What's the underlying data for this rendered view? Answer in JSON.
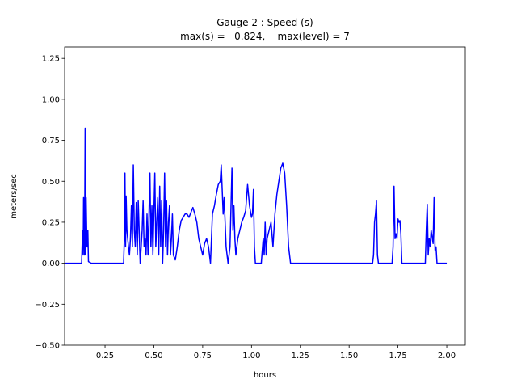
{
  "chart_data": {
    "type": "line",
    "title": "Gauge 2 : Speed (s)",
    "subtitle": "max(s) =   0.824,    max(level) = 7",
    "x_label": "hours",
    "y_label": "meters/sec",
    "xlim": [
      0.043,
      2.095
    ],
    "ylim": [
      -0.5,
      1.32
    ],
    "xticks": [
      0.25,
      {
        "value": 0.5,
        "label": "0.50"
      },
      0.75,
      {
        "value": 1,
        "label": "1.00"
      },
      1.25,
      {
        "value": 1.5,
        "label": "1.50"
      },
      1.75,
      {
        "value": 2,
        "label": "2.00"
      }
    ],
    "yticks": [
      {
        "value": -0.5,
        "label": "−0.50"
      },
      {
        "value": -0.25,
        "label": "−0.25"
      },
      {
        "value": 0,
        "label": "0.00"
      },
      0.25,
      {
        "value": 0.5,
        "label": "0.50"
      },
      0.75,
      {
        "value": 1,
        "label": "1.00"
      },
      1.25
    ],
    "series": [
      {
        "color": "#0000ff",
        "x": [
          0.043,
          0.13,
          0.135,
          0.138,
          0.14,
          0.145,
          0.148,
          0.151,
          0.153,
          0.157,
          0.16,
          0.162,
          0.165,
          0.18,
          0.345,
          0.35,
          0.352,
          0.355,
          0.358,
          0.362,
          0.37,
          0.375,
          0.38,
          0.385,
          0.39,
          0.395,
          0.4,
          0.405,
          0.41,
          0.415,
          0.42,
          0.43,
          0.44,
          0.445,
          0.45,
          0.455,
          0.46,
          0.465,
          0.47,
          0.48,
          0.485,
          0.49,
          0.495,
          0.5,
          0.505,
          0.51,
          0.52,
          0.525,
          0.53,
          0.535,
          0.54,
          0.545,
          0.55,
          0.555,
          0.56,
          0.565,
          0.57,
          0.575,
          0.58,
          0.585,
          0.59,
          0.595,
          0.6,
          0.61,
          0.62,
          0.63,
          0.64,
          0.65,
          0.66,
          0.67,
          0.68,
          0.69,
          0.7,
          0.71,
          0.72,
          0.73,
          0.74,
          0.75,
          0.76,
          0.77,
          0.78,
          0.79,
          0.8,
          0.81,
          0.82,
          0.83,
          0.84,
          0.845,
          0.85,
          0.855,
          0.86,
          0.865,
          0.87,
          0.875,
          0.88,
          0.89,
          0.9,
          0.905,
          0.91,
          0.915,
          0.92,
          0.93,
          0.94,
          0.95,
          0.96,
          0.97,
          0.98,
          0.99,
          1.0,
          1.005,
          1.01,
          1.015,
          1.02,
          1.05,
          1.06,
          1.065,
          1.07,
          1.075,
          1.08,
          1.09,
          1.1,
          1.11,
          1.115,
          1.12,
          1.13,
          1.14,
          1.15,
          1.16,
          1.17,
          1.18,
          1.19,
          1.2,
          1.62,
          1.625,
          1.63,
          1.635,
          1.64,
          1.645,
          1.65,
          1.72,
          1.725,
          1.73,
          1.735,
          1.74,
          1.745,
          1.75,
          1.755,
          1.76,
          1.765,
          1.77,
          1.89,
          1.895,
          1.9,
          1.905,
          1.91,
          1.915,
          1.92,
          1.93,
          1.935,
          1.94,
          1.945,
          1.95,
          2.0
        ],
        "values": [
          0,
          0,
          0.2,
          0.05,
          0.4,
          0.05,
          0.824,
          0.05,
          0.4,
          0.1,
          0.1,
          0.2,
          0.01,
          0,
          0,
          0.2,
          0.55,
          0.1,
          0.41,
          0.2,
          0.1,
          0.05,
          0.15,
          0.35,
          0.1,
          0.6,
          0.2,
          0.1,
          0.37,
          0.05,
          0.38,
          0,
          0.2,
          0.38,
          0.1,
          0.15,
          0.05,
          0.3,
          0.05,
          0.55,
          0.1,
          0.35,
          0.05,
          0.3,
          0.55,
          0.1,
          0.4,
          0.05,
          0.47,
          0.1,
          0.38,
          0,
          0.2,
          0.55,
          0.1,
          0.38,
          0.05,
          0.25,
          0.35,
          0.05,
          0.15,
          0.3,
          0.05,
          0.02,
          0.1,
          0.2,
          0.26,
          0.28,
          0.3,
          0.3,
          0.28,
          0.31,
          0.34,
          0.3,
          0.25,
          0.15,
          0.1,
          0.05,
          0.12,
          0.15,
          0.1,
          0,
          0.3,
          0.35,
          0.42,
          0.48,
          0.5,
          0.6,
          0.45,
          0.3,
          0.4,
          0.25,
          0.1,
          0.05,
          0,
          0.1,
          0.58,
          0.2,
          0.35,
          0.15,
          0.05,
          0.15,
          0.2,
          0.25,
          0.28,
          0.32,
          0.48,
          0.35,
          0.28,
          0.3,
          0.45,
          0.1,
          0,
          0,
          0.15,
          0.05,
          0.25,
          0.05,
          0.15,
          0.2,
          0.25,
          0.1,
          0.2,
          0.3,
          0.42,
          0.5,
          0.58,
          0.61,
          0.55,
          0.35,
          0.1,
          0,
          0,
          0.05,
          0.25,
          0.3,
          0.38,
          0.05,
          0,
          0,
          0.1,
          0.47,
          0.15,
          0.18,
          0.15,
          0.27,
          0.25,
          0.26,
          0.18,
          0,
          0,
          0.2,
          0.36,
          0.05,
          0.15,
          0.1,
          0.2,
          0.12,
          0.4,
          0.08,
          0.1,
          0,
          0
        ]
      }
    ]
  }
}
